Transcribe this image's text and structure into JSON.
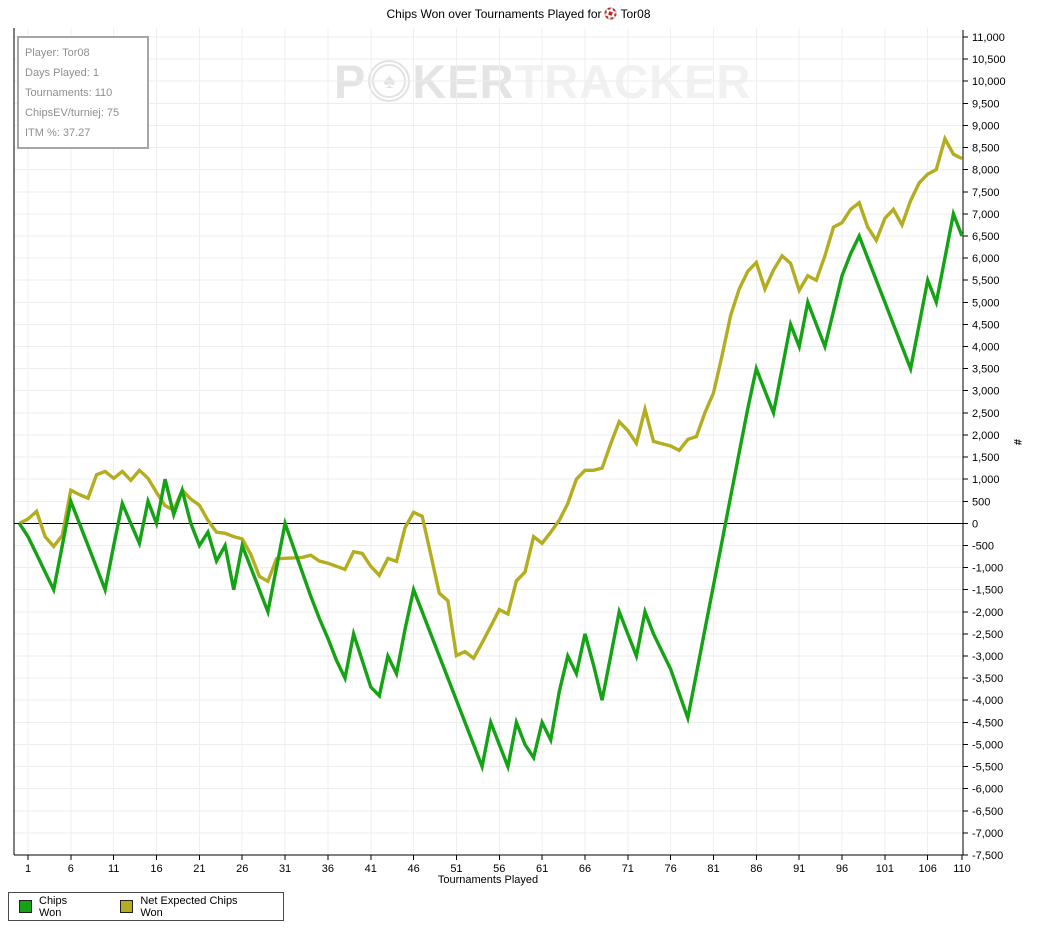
{
  "title": {
    "prefix": "Chips Won over Tournaments Played for",
    "player": "Tor08"
  },
  "info_box": {
    "lines": [
      "Player: Tor08",
      "Days Played: 1",
      "Tournaments: 110",
      "ChipsEV/turniej: 75",
      "ITM %: 37.27"
    ]
  },
  "watermark": {
    "p": "P",
    "ker": "KER",
    "tracker": "TRACKER",
    "chip_icon": "poker-chip-spade",
    "spade": "♠"
  },
  "legend": {
    "items": [
      {
        "label": "Chips Won",
        "color": "#14a314"
      },
      {
        "label": "Net Expected Chips Won",
        "color": "#b3ad1f"
      }
    ]
  },
  "chart_data": {
    "type": "line",
    "title": "Chips Won over Tournaments Played for Tor08",
    "xlabel": "Tournaments Played",
    "ylabel": "#",
    "x_start": 0,
    "x_end": 110,
    "x_ticks": [
      1,
      6,
      11,
      16,
      21,
      26,
      31,
      36,
      41,
      46,
      51,
      56,
      61,
      66,
      71,
      76,
      81,
      86,
      91,
      96,
      101,
      106,
      110
    ],
    "ylim": [
      -7500,
      11000
    ],
    "y_tick_step": 500,
    "grid": true,
    "zero_line": true,
    "legend_position": "bottom-left",
    "series": [
      {
        "name": "Chips Won",
        "color": "#14a314",
        "values": [
          0,
          -300,
          -700,
          -1100,
          -1500,
          -500,
          500,
          0,
          -500,
          -1000,
          -1500,
          -500,
          450,
          0,
          -450,
          500,
          0,
          1000,
          200,
          750,
          0,
          -500,
          -200,
          -850,
          -500,
          -1500,
          -500,
          -1000,
          -1500,
          -2000,
          -1000,
          0,
          -550,
          -1100,
          -1650,
          -2150,
          -2600,
          -3100,
          -3500,
          -2500,
          -3100,
          -3700,
          -3900,
          -3000,
          -3400,
          -2400,
          -1500,
          -2000,
          -2500,
          -3000,
          -3500,
          -4000,
          -4500,
          -5000,
          -5500,
          -4500,
          -5000,
          -5500,
          -4500,
          -5000,
          -5300,
          -4500,
          -4900,
          -3800,
          -3000,
          -3400,
          -2500,
          -3200,
          -4000,
          -3000,
          -2000,
          -2500,
          -3000,
          -2000,
          -2500,
          -2900,
          -3300,
          -3850,
          -4400,
          -3400,
          -2400,
          -1400,
          -400,
          600,
          1600,
          2600,
          3500,
          3000,
          2500,
          3500,
          4500,
          4000,
          5000,
          4500,
          4000,
          4800,
          5600,
          6100,
          6500,
          6000,
          5500,
          5000,
          4500,
          4000,
          3500,
          4500,
          5500,
          5000,
          6000,
          7000,
          6500
        ]
      },
      {
        "name": "Net Expected Chips Won",
        "color": "#b3ad1f",
        "values": [
          0,
          100,
          270,
          -300,
          -520,
          -270,
          750,
          650,
          570,
          1100,
          1175,
          1020,
          1175,
          975,
          1200,
          1020,
          700,
          400,
          300,
          750,
          550,
          410,
          70,
          -200,
          -225,
          -300,
          -350,
          -700,
          -1200,
          -1310,
          -800,
          -790,
          -780,
          -770,
          -720,
          -850,
          -900,
          -970,
          -1040,
          -640,
          -680,
          -970,
          -1175,
          -790,
          -860,
          -100,
          250,
          160,
          -700,
          -1580,
          -1750,
          -2990,
          -2900,
          -3050,
          -2700,
          -2330,
          -1950,
          -2050,
          -1300,
          -1100,
          -300,
          -450,
          -200,
          70,
          450,
          1000,
          1200,
          1200,
          1250,
          1800,
          2300,
          2100,
          1810,
          2580,
          1855,
          1800,
          1750,
          1650,
          1900,
          1965,
          2500,
          2950,
          3800,
          4700,
          5300,
          5700,
          5900,
          5300,
          5730,
          6050,
          5880,
          5270,
          5600,
          5500,
          6050,
          6700,
          6800,
          7100,
          7250,
          6700,
          6400,
          6900,
          7100,
          6750,
          7300,
          7700,
          7900,
          8000,
          8700,
          8350,
          8250
        ]
      }
    ]
  }
}
